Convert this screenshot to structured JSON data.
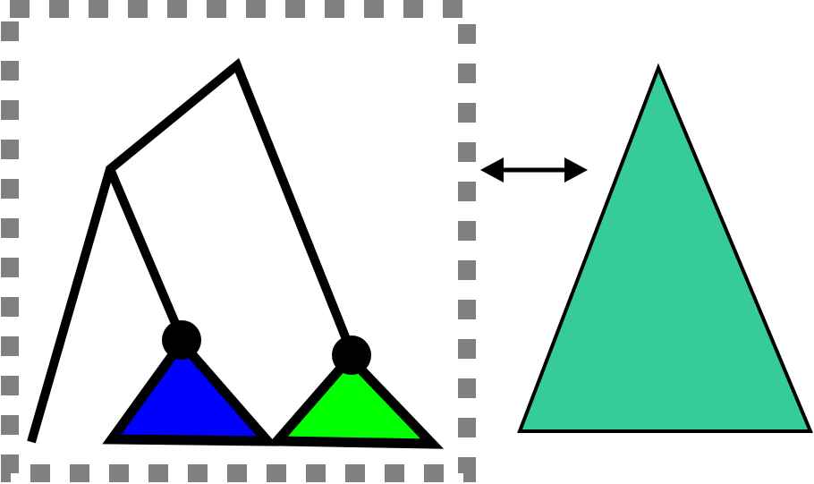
{
  "colors": {
    "background": "#ffffff",
    "stroke": "#000000",
    "dashed_frame": "#808080",
    "subtree_blue": "#0000ff",
    "subtree_green": "#00ff00",
    "target_triangle": "#36cb9a"
  },
  "icons": {
    "comparison_arrow": "double-headed-arrow-icon"
  }
}
